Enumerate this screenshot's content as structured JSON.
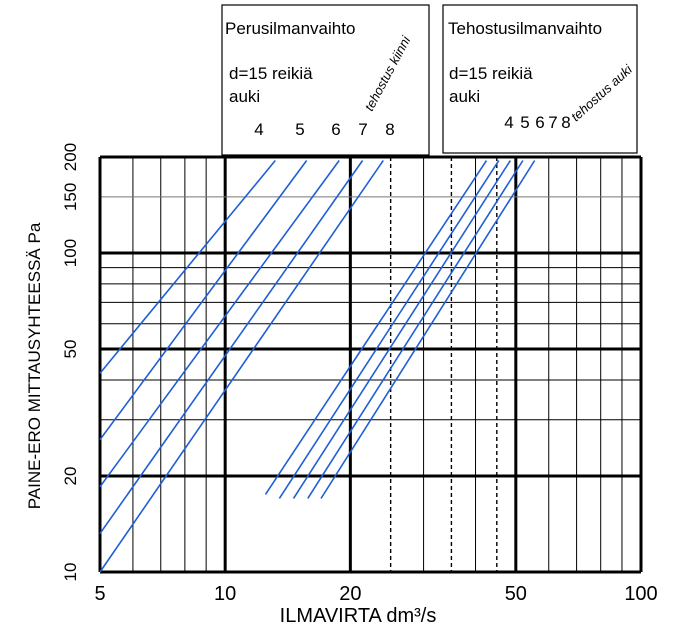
{
  "chart_data": {
    "type": "line",
    "xlabel": "ILMAVIRTA  dm³/s",
    "ylabel": "PAINE-ERO MITTAUSYHTEESSÄ  Pa",
    "x_scale": "log",
    "y_scale": "log",
    "xlim": [
      5,
      100
    ],
    "ylim": [
      10,
      200
    ],
    "x_ticks": [
      5,
      10,
      20,
      50,
      100
    ],
    "y_ticks": [
      10,
      20,
      50,
      100,
      150,
      200
    ],
    "grid": true,
    "reference_x_dashed": [
      25,
      35,
      45
    ],
    "groups": [
      {
        "box_title": "Perusilmanvaihto",
        "box_line1": "d=15 reikiä",
        "box_line2": "auki",
        "annotation": "tehostus kiinni",
        "series": [
          {
            "name": "4",
            "x": [
              5,
              13.2
            ],
            "y": [
              42,
              195
            ]
          },
          {
            "name": "5",
            "x": [
              5,
              15.7
            ],
            "y": [
              26,
              195
            ]
          },
          {
            "name": "6",
            "x": [
              5,
              18.8
            ],
            "y": [
              18.5,
              195
            ]
          },
          {
            "name": "7",
            "x": [
              5,
              21.4
            ],
            "y": [
              13.2,
              195
            ]
          },
          {
            "name": "8",
            "x": [
              5,
              24.0
            ],
            "y": [
              10,
              195
            ]
          }
        ]
      },
      {
        "box_title": "Tehostusilmanvaihto",
        "box_line1": "d=15 reikiä",
        "box_line2": "auki",
        "annotation": "tehostus auki",
        "series": [
          {
            "name": "4",
            "x": [
              12.5,
              42.5
            ],
            "y": [
              17.5,
              195
            ]
          },
          {
            "name": "5",
            "x": [
              13.5,
              45.5
            ],
            "y": [
              17,
              195
            ]
          },
          {
            "name": "6",
            "x": [
              14.6,
              48.5
            ],
            "y": [
              17,
              195
            ]
          },
          {
            "name": "7",
            "x": [
              15.8,
              52.0
            ],
            "y": [
              17,
              195
            ]
          },
          {
            "name": "8",
            "x": [
              17.0,
              55.5
            ],
            "y": [
              17,
              195
            ]
          }
        ]
      }
    ]
  },
  "colors": {
    "curve": "#1f5fd6",
    "grid": "#000000"
  }
}
